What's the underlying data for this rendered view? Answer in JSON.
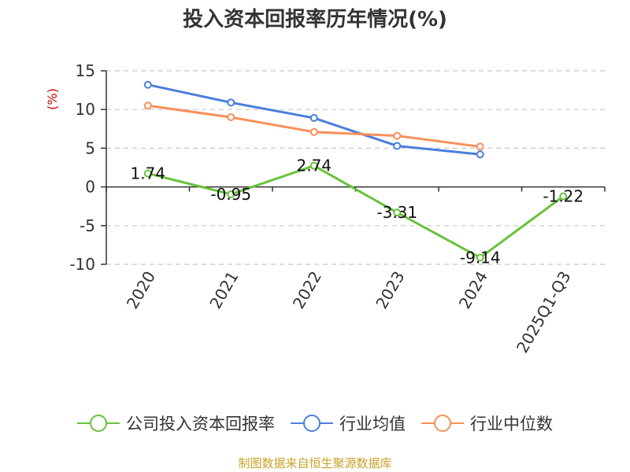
{
  "title": "投入资本回报率历年情况(%)",
  "source": "制图数据来自恒生聚源数据库",
  "colors": {
    "company": "#67c23a",
    "industry_avg": "#4a7fdc",
    "industry_median": "#f7905a",
    "unit": "#cc0000",
    "source": "#c9a227"
  },
  "chart_data": {
    "type": "line",
    "title": "投入资本回报率历年情况(%)",
    "ylabel": "(%)",
    "xlabel": "",
    "ylim": [
      -10,
      15
    ],
    "yticks": [
      15,
      10,
      5,
      0,
      -5,
      -10
    ],
    "grid": true,
    "legend_position": "bottom",
    "categories": [
      "2020",
      "2021",
      "2022",
      "2023",
      "2024",
      "2025Q1-Q3"
    ],
    "series": [
      {
        "name": "公司投入资本回报率",
        "color": "#67c23a",
        "values": [
          1.74,
          -0.95,
          2.74,
          -3.31,
          -9.14,
          -1.22
        ],
        "labels": [
          "1.74",
          "-0.95",
          "2.74",
          "-3.31",
          "-9.14",
          "-1.22"
        ]
      },
      {
        "name": "行业均值",
        "color": "#4a7fdc",
        "values": [
          13.2,
          10.9,
          8.9,
          5.3,
          4.2,
          null
        ]
      },
      {
        "name": "行业中位数",
        "color": "#f7905a",
        "values": [
          10.5,
          9.0,
          7.1,
          6.6,
          5.2,
          null
        ]
      }
    ]
  }
}
